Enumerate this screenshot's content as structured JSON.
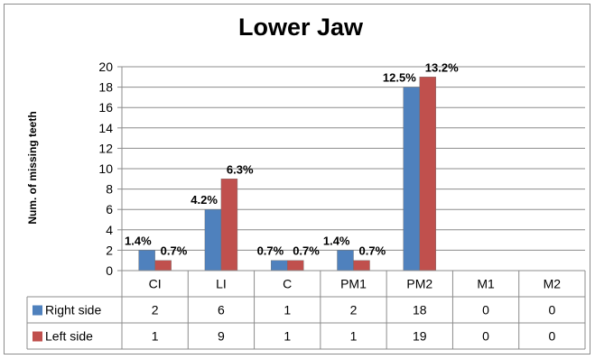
{
  "chart_data": {
    "type": "bar",
    "title": "Lower Jaw",
    "ylabel": "Num. of missing teeth",
    "xlabel": "",
    "ylim": [
      0,
      20
    ],
    "yticks": [
      0,
      2,
      4,
      6,
      8,
      10,
      12,
      14,
      16,
      18,
      20
    ],
    "grid": true,
    "legend": "data-table",
    "categories": [
      "CI",
      "LI",
      "C",
      "PM1",
      "PM2",
      "M1",
      "M2"
    ],
    "series": [
      {
        "name": "Right side",
        "color": "#4f81bd",
        "values": [
          2,
          6,
          1,
          2,
          18,
          0,
          0
        ],
        "labels": [
          "1.4%",
          "4.2%",
          "0.7%",
          "1.4%",
          "12.5%",
          "",
          ""
        ]
      },
      {
        "name": "Left side",
        "color": "#c0504d",
        "values": [
          1,
          9,
          1,
          1,
          19,
          0,
          0
        ],
        "labels": [
          "0.7%",
          "6.3%",
          "0.7%",
          "0.7%",
          "13.2%",
          "",
          ""
        ]
      }
    ]
  }
}
